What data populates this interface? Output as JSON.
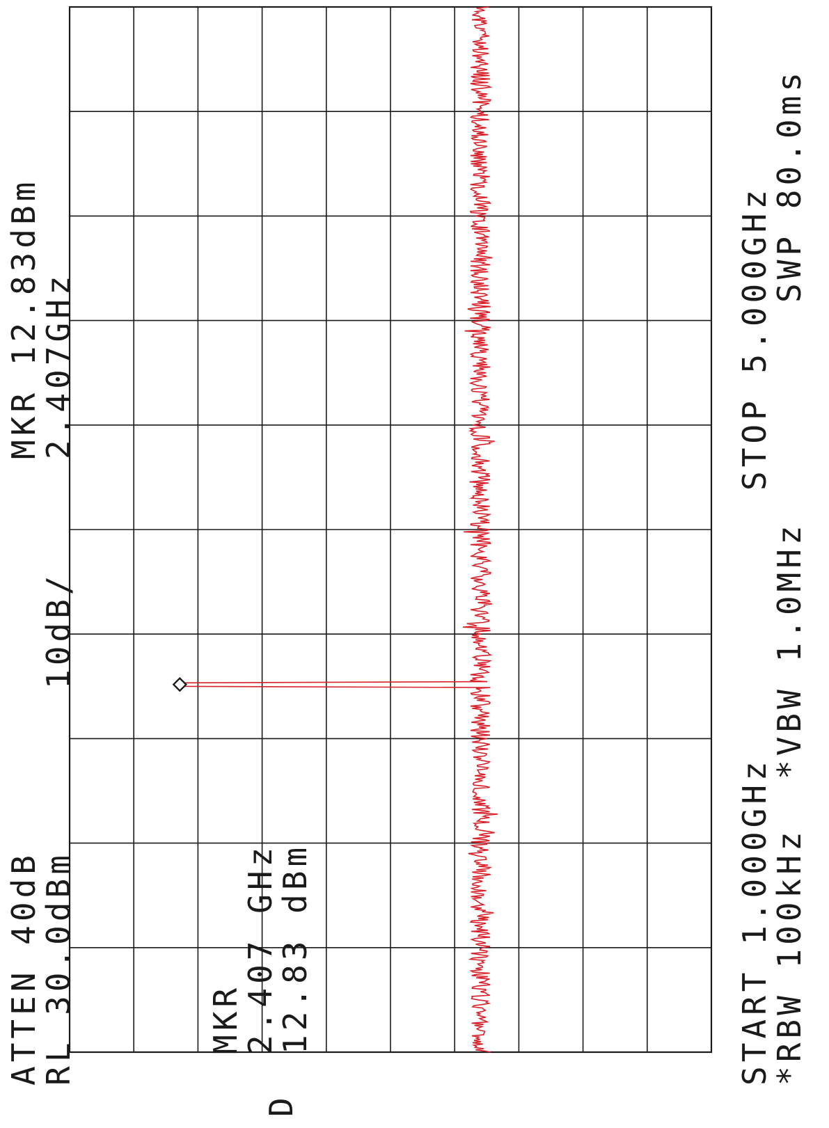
{
  "header": {
    "atten": "ATTEN 40dB",
    "ref_level": "RL 30.0dBm",
    "scale": "10dB/",
    "marker_label": "MKR 12.83dBm",
    "marker_freq": "2.407GHz"
  },
  "marker_box": {
    "title": "MKR",
    "freq": "2.407 GHz",
    "level": "12.83 dBm"
  },
  "detector_label": "D",
  "footer": {
    "start": "START 1.000GHz",
    "stop": "STOP 5.000GHz",
    "rbw": "*RBW 100kHz",
    "vbw": "*VBW 1.0MHz",
    "sweep": "SWP 80.0ms"
  },
  "colors": {
    "trace": "#d8202a",
    "grid": "#1a1a1a",
    "background": "#ffffff"
  },
  "icons": {
    "marker": "diamond-marker-icon"
  },
  "chart_data": {
    "type": "line",
    "x_unit": "GHz",
    "y_unit": "dBm",
    "xlim": [
      1.0,
      5.0
    ],
    "ylim": [
      -70,
      30
    ],
    "x_divisions": 10,
    "y_divisions": 10,
    "grid": true,
    "series": [
      {
        "noise_floor_dbm": -34,
        "peak": {
          "x": 2.407,
          "y": 12.83
        },
        "peak_width_ghz": 0.02
      }
    ],
    "marker": {
      "x": 2.407,
      "y": 12.83
    }
  }
}
